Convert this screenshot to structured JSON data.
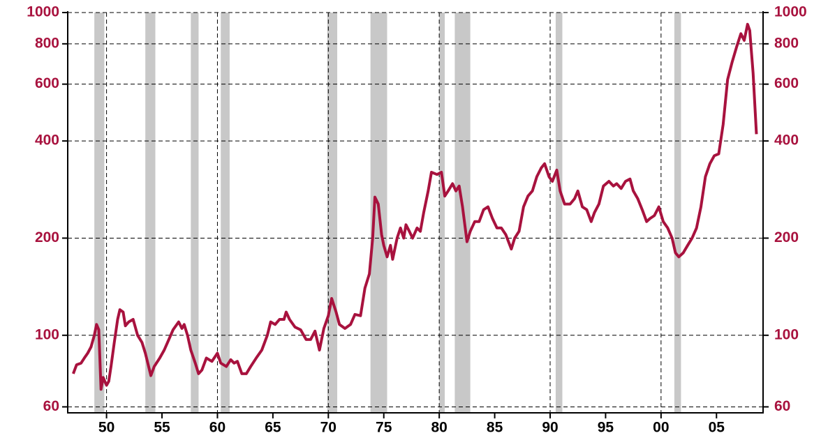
{
  "chart_data": {
    "type": "line",
    "log_scale": true,
    "grid": true,
    "color": "#a8123e",
    "shade_color": "#c8c8c8",
    "xlim": [
      1946.5,
      2009.2
    ],
    "xticks": [
      {
        "value": 1950,
        "label": "50"
      },
      {
        "value": 1955,
        "label": "55"
      },
      {
        "value": 1960,
        "label": "60"
      },
      {
        "value": 1965,
        "label": "65"
      },
      {
        "value": 1970,
        "label": "70"
      },
      {
        "value": 1975,
        "label": "75"
      },
      {
        "value": 1980,
        "label": "80"
      },
      {
        "value": 1985,
        "label": "85"
      },
      {
        "value": 1990,
        "label": "90"
      },
      {
        "value": 1995,
        "label": "95"
      },
      {
        "value": 2000,
        "label": "00"
      },
      {
        "value": 2005,
        "label": "05"
      }
    ],
    "ylim": [
      57.5,
      1000
    ],
    "yticks": [
      60,
      100,
      200,
      400,
      600,
      800,
      1000
    ],
    "recessions": [
      [
        1948.9,
        1949.8
      ],
      [
        1953.5,
        1954.4
      ],
      [
        1957.6,
        1958.3
      ],
      [
        1960.3,
        1961.1
      ],
      [
        1969.9,
        1970.8
      ],
      [
        1973.8,
        1975.3
      ],
      [
        1980.0,
        1980.5
      ],
      [
        1981.4,
        1982.8
      ],
      [
        1990.5,
        1991.1
      ],
      [
        2001.2,
        2001.8
      ]
    ],
    "x": [
      1947.0,
      1947.3,
      1947.7,
      1948.0,
      1948.3,
      1948.6,
      1948.9,
      1949.1,
      1949.3,
      1949.5,
      1949.7,
      1950.0,
      1950.2,
      1950.4,
      1950.7,
      1951.0,
      1951.2,
      1951.5,
      1951.7,
      1952.0,
      1952.4,
      1952.8,
      1953.2,
      1953.5,
      1954.0,
      1954.3,
      1954.8,
      1955.2,
      1955.5,
      1956.0,
      1956.5,
      1956.8,
      1957.0,
      1957.3,
      1957.6,
      1958.0,
      1958.3,
      1958.6,
      1959.0,
      1959.5,
      1960.0,
      1960.3,
      1960.8,
      1961.2,
      1961.5,
      1961.8,
      1962.2,
      1962.6,
      1963.0,
      1963.5,
      1964.0,
      1964.5,
      1964.8,
      1965.2,
      1965.6,
      1966.0,
      1966.2,
      1966.5,
      1967.0,
      1967.5,
      1968.0,
      1968.4,
      1968.8,
      1969.2,
      1969.6,
      1970.0,
      1970.3,
      1970.7,
      1971.0,
      1971.5,
      1972.0,
      1972.4,
      1972.9,
      1973.3,
      1973.7,
      1974.0,
      1974.2,
      1974.5,
      1974.8,
      1975.0,
      1975.3,
      1975.6,
      1975.8,
      1976.2,
      1976.5,
      1976.8,
      1977.0,
      1977.3,
      1977.6,
      1978.0,
      1978.3,
      1978.6,
      1979.0,
      1979.3,
      1979.8,
      1980.2,
      1980.5,
      1980.8,
      1981.2,
      1981.5,
      1981.8,
      1982.1,
      1982.5,
      1982.8,
      1983.2,
      1983.6,
      1984.0,
      1984.4,
      1984.8,
      1985.2,
      1985.6,
      1986.0,
      1986.5,
      1986.8,
      1987.2,
      1987.6,
      1988.0,
      1988.4,
      1988.8,
      1989.2,
      1989.5,
      1989.9,
      1990.2,
      1990.6,
      1990.9,
      1991.3,
      1991.8,
      1992.2,
      1992.5,
      1992.9,
      1993.3,
      1993.7,
      1994.0,
      1994.4,
      1994.8,
      1995.3,
      1995.7,
      1996.0,
      1996.4,
      1996.8,
      1997.2,
      1997.5,
      1997.9,
      1998.3,
      1998.7,
      1999.0,
      1999.4,
      1999.8,
      2000.2,
      2000.6,
      2001.0,
      2001.3,
      2001.6,
      2002.0,
      2002.4,
      2002.8,
      2003.2,
      2003.6,
      2004.0,
      2004.4,
      2004.8,
      2005.2,
      2005.6,
      2006.0,
      2006.4,
      2006.8,
      2007.2,
      2007.5,
      2007.8,
      2008.0,
      2008.3,
      2008.6
    ],
    "values": [
      76,
      81,
      82,
      85,
      88,
      92,
      100,
      108,
      104,
      68,
      74,
      70,
      72,
      80,
      95,
      112,
      120,
      118,
      107,
      110,
      112,
      100,
      95,
      88,
      75,
      80,
      85,
      90,
      95,
      104,
      110,
      105,
      108,
      100,
      90,
      82,
      76,
      78,
      85,
      83,
      88,
      82,
      80,
      84,
      82,
      83,
      76,
      76,
      80,
      85,
      90,
      100,
      110,
      108,
      112,
      112,
      118,
      112,
      106,
      104,
      97,
      97,
      103,
      90,
      105,
      115,
      130,
      118,
      108,
      105,
      108,
      116,
      115,
      140,
      155,
      200,
      268,
      255,
      205,
      190,
      175,
      190,
      172,
      200,
      215,
      200,
      220,
      210,
      200,
      215,
      210,
      240,
      280,
      320,
      315,
      320,
      270,
      280,
      295,
      280,
      290,
      250,
      195,
      210,
      225,
      225,
      245,
      250,
      230,
      215,
      215,
      205,
      185,
      200,
      210,
      250,
      270,
      280,
      310,
      330,
      340,
      310,
      300,
      325,
      280,
      255,
      255,
      265,
      280,
      250,
      245,
      225,
      240,
      255,
      290,
      300,
      290,
      295,
      285,
      300,
      305,
      280,
      265,
      245,
      225,
      230,
      235,
      250,
      225,
      215,
      200,
      180,
      175,
      180,
      190,
      200,
      215,
      250,
      310,
      340,
      360,
      365,
      450,
      620,
      700,
      780,
      860,
      820,
      920,
      880,
      650,
      420
    ]
  }
}
